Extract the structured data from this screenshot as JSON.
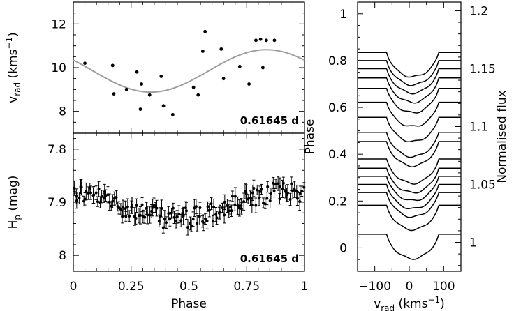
{
  "chart_data": [
    {
      "type": "scatter",
      "panel": "radial-velocity",
      "xlim": [
        0,
        1
      ],
      "ylim": [
        7,
        13
      ],
      "yticks": [
        8,
        10,
        12
      ],
      "ylabel": {
        "main": "v",
        "sub": "rad",
        "rest": " (kms",
        "sup": "−1",
        "end": ")"
      },
      "annotation": "0.61645 d",
      "points": [
        {
          "x": 0.05,
          "y": 10.2
        },
        {
          "x": 0.17,
          "y": 10.1
        },
        {
          "x": 0.175,
          "y": 8.8
        },
        {
          "x": 0.23,
          "y": 9.0
        },
        {
          "x": 0.275,
          "y": 9.8
        },
        {
          "x": 0.29,
          "y": 8.1
        },
        {
          "x": 0.295,
          "y": 9.25
        },
        {
          "x": 0.33,
          "y": 8.75
        },
        {
          "x": 0.38,
          "y": 9.6
        },
        {
          "x": 0.39,
          "y": 8.25
        },
        {
          "x": 0.43,
          "y": 7.85
        },
        {
          "x": 0.52,
          "y": 9.1
        },
        {
          "x": 0.54,
          "y": 8.75
        },
        {
          "x": 0.56,
          "y": 10.75
        },
        {
          "x": 0.57,
          "y": 11.65
        },
        {
          "x": 0.64,
          "y": 10.85
        },
        {
          "x": 0.65,
          "y": 9.5
        },
        {
          "x": 0.72,
          "y": 10.05
        },
        {
          "x": 0.76,
          "y": 9.25
        },
        {
          "x": 0.79,
          "y": 11.25
        },
        {
          "x": 0.81,
          "y": 11.3
        },
        {
          "x": 0.82,
          "y": 10.0
        },
        {
          "x": 0.835,
          "y": 11.25
        },
        {
          "x": 0.87,
          "y": 11.25
        }
      ],
      "fit": {
        "label": "sinusoid",
        "mean": 9.85,
        "amplitude": 0.97,
        "phase_of_max": 0.835
      }
    },
    {
      "type": "scatter",
      "panel": "hipparcos-photometry",
      "xlim": [
        0,
        1
      ],
      "ylim": [
        8.03,
        7.77
      ],
      "yticks": [
        7.8,
        7.9,
        8.0
      ],
      "ytick_labels": [
        "7.8",
        "7.9",
        "8"
      ],
      "xticks": [
        0,
        0.25,
        0.5,
        0.75,
        1
      ],
      "xtick_labels": [
        "0",
        "0.25",
        "0.5",
        "0.75",
        "1"
      ],
      "xlabel": "Phase",
      "ylabel": {
        "main": "H",
        "sub": "p",
        "rest": " (mag)"
      },
      "annotation": "0.61645 d",
      "model": {
        "mean": 7.905,
        "amplitude": 0.028,
        "phase_of_bright": 0.95,
        "typical_error": 0.012
      },
      "n_points": 150
    },
    {
      "type": "line",
      "panel": "line-profiles",
      "xlim": [
        -150,
        150
      ],
      "xticks": [
        -100,
        0,
        100
      ],
      "xtick_labels": [
        "−100",
        "0",
        "100"
      ],
      "xlabel": {
        "main": "v",
        "sub": "rad",
        "rest": " (kms",
        "sup": "−1",
        "end": ")"
      },
      "left_axis": {
        "label": "Phase",
        "range": [
          -0.1,
          1.05
        ],
        "ticks": [
          0,
          0.2,
          0.4,
          0.6,
          0.8,
          1
        ]
      },
      "right_axis": {
        "label": "Normalised flux",
        "range": [
          0.975,
          1.2075
        ],
        "ticks": [
          1,
          1.05,
          1.1,
          1.15,
          1.2
        ]
      },
      "profile": {
        "center": 10,
        "half_width": 75,
        "depth": 0.021
      },
      "continuum_levels": [
        1.007,
        1.032,
        1.043,
        1.05,
        1.057,
        1.064,
        1.072,
        1.087,
        1.095,
        1.108,
        1.121,
        1.133,
        1.142,
        1.15,
        1.157,
        1.164
      ]
    }
  ]
}
